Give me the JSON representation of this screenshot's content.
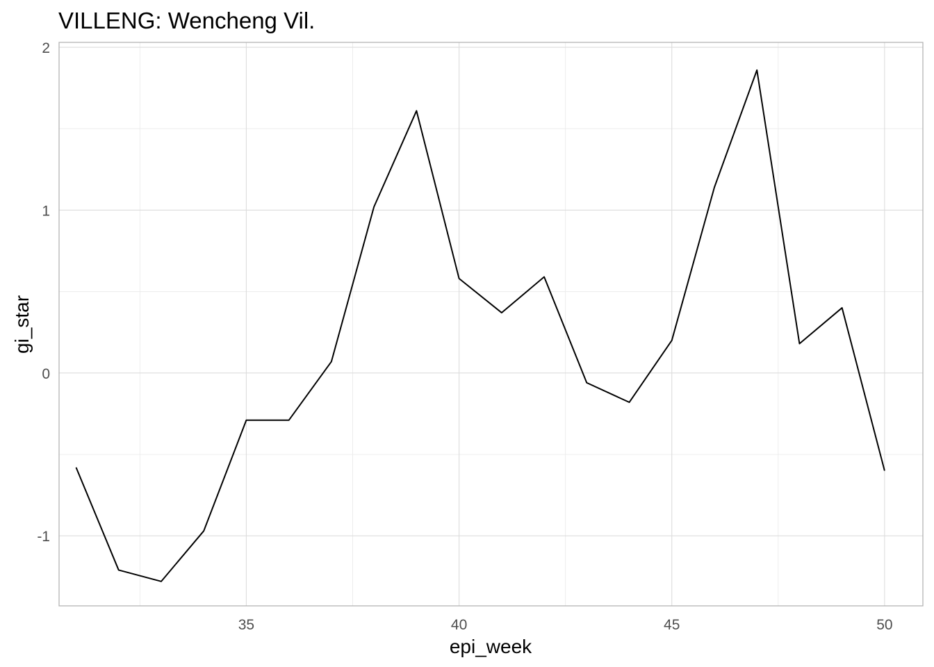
{
  "chart_data": {
    "type": "line",
    "title": "VILLENG: Wencheng Vil.",
    "xlabel": "epi_week",
    "ylabel": "gi_star",
    "x_ticks": [
      35,
      40,
      45,
      50
    ],
    "y_ticks": [
      -1,
      0,
      1,
      2
    ],
    "x_tick_labels": [
      "35",
      "40",
      "45",
      "50"
    ],
    "y_tick_labels": [
      "-1",
      "0",
      "1",
      "2"
    ],
    "xlim": [
      30.6,
      50.9
    ],
    "ylim": [
      -1.43,
      2.03
    ],
    "grid": true,
    "legend": "none",
    "line_color": "#000000",
    "series": [
      {
        "x": [
          31,
          32,
          33,
          34,
          35,
          36,
          37,
          38,
          39,
          40,
          41,
          42,
          43,
          44,
          45,
          46,
          47,
          48,
          49,
          50
        ],
        "values": [
          -0.58,
          -1.21,
          -1.28,
          -0.97,
          -0.29,
          -0.29,
          0.07,
          1.02,
          1.61,
          0.58,
          0.37,
          0.59,
          -0.06,
          -0.18,
          0.2,
          1.14,
          1.86,
          0.18,
          0.4,
          -0.6
        ]
      }
    ]
  }
}
